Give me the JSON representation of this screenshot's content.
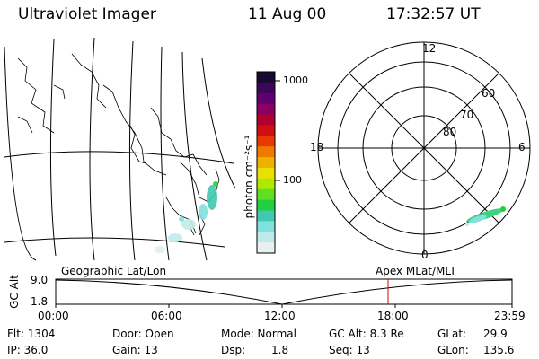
{
  "header": {
    "title": "Ultraviolet Imager",
    "date": "11 Aug 00",
    "time": "17:32:57 UT"
  },
  "colorbar": {
    "unit_label": "photon cm⁻²s⁻¹",
    "ticks": [
      "1000",
      "100"
    ],
    "colors": [
      "#1a0830",
      "#3a0858",
      "#600070",
      "#8a0060",
      "#b00030",
      "#d01010",
      "#e83a00",
      "#f07a00",
      "#f0b000",
      "#e8e000",
      "#b0e800",
      "#60e020",
      "#20d040",
      "#40c8b0",
      "#80e0e0",
      "#c0eaea",
      "#e8f0f0"
    ]
  },
  "polar": {
    "labels": [
      "12",
      "18",
      "6",
      "0",
      "60",
      "70",
      "80"
    ]
  },
  "panel_labels": {
    "left": "Geographic Lat/Lon",
    "right": "Apex  MLat/MLT"
  },
  "altitude_plot": {
    "axis_label": "GC Alt",
    "y_ticks": [
      "9.0",
      "1.8"
    ],
    "x_ticks": [
      "00:00",
      "06:00",
      "12:00",
      "18:00",
      "23:59"
    ],
    "marker_color": "#e00000"
  },
  "info": {
    "flt": "Flt: 1304",
    "ip": "IP: 36.0",
    "door": "Door: Open",
    "gain": "Gain: 13",
    "mode": "Mode: Normal",
    "dsp_label": "Dsp:",
    "dsp_value": "1.8",
    "gcalt": "GC Alt: 8.3 Re",
    "seq": "Seq: 13",
    "glat_label": "GLat:",
    "glat_value": "29.9",
    "glon_label": "GLon:",
    "glon_value": "135.6"
  }
}
